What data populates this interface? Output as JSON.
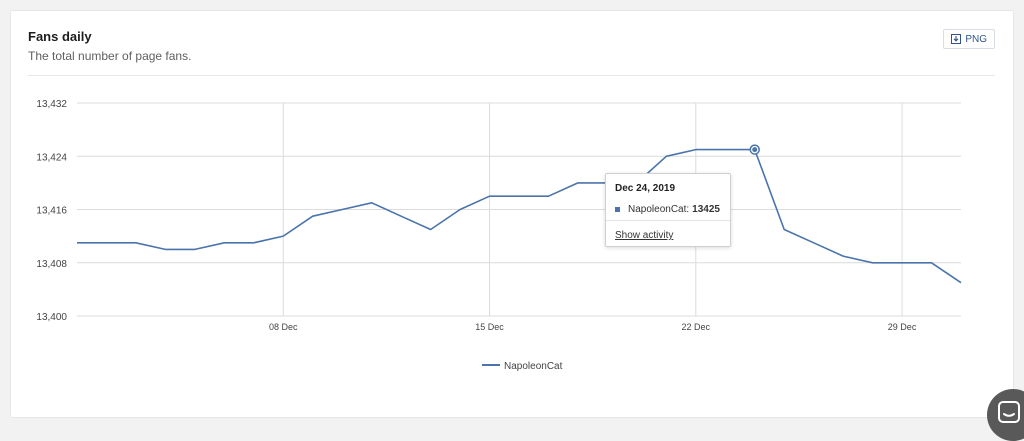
{
  "card": {
    "title": "Fans daily",
    "subtitle": "The total number of page fans.",
    "export_label": "PNG"
  },
  "tooltip": {
    "date": "Dec 24, 2019",
    "series_label": "NapoleonCat:",
    "value": "13425",
    "action_label": "Show activity"
  },
  "chart_data": {
    "type": "line",
    "x": [
      "Dec 1",
      "Dec 2",
      "Dec 3",
      "Dec 4",
      "Dec 5",
      "Dec 6",
      "Dec 7",
      "Dec 8",
      "Dec 9",
      "Dec 10",
      "Dec 11",
      "Dec 12",
      "Dec 13",
      "Dec 14",
      "Dec 15",
      "Dec 16",
      "Dec 17",
      "Dec 18",
      "Dec 19",
      "Dec 20",
      "Dec 21",
      "Dec 22",
      "Dec 23",
      "Dec 24",
      "Dec 25",
      "Dec 26",
      "Dec 27",
      "Dec 28",
      "Dec 29",
      "Dec 30",
      "Dec 31"
    ],
    "series": [
      {
        "name": "NapoleonCat",
        "color": "#4a74ab",
        "values": [
          13411,
          13411,
          13411,
          13410,
          13410,
          13411,
          13411,
          13412,
          13415,
          13416,
          13417,
          13415,
          13413,
          13416,
          13418,
          13418,
          13418,
          13420,
          13420,
          13420,
          13424,
          13425,
          13425,
          13425,
          13413,
          13411,
          13409,
          13408,
          13408,
          13408,
          13405
        ]
      }
    ],
    "xticks": [
      "08 Dec",
      "15 Dec",
      "22 Dec",
      "29 Dec"
    ],
    "xtick_index": [
      7,
      14,
      21,
      28
    ],
    "yticks": [
      "13,400",
      "13,408",
      "13,416",
      "13,424",
      "13,432"
    ],
    "ylim": [
      13400,
      13432
    ],
    "highlight_index": 23,
    "grid": true,
    "legend": "bottom-center"
  }
}
